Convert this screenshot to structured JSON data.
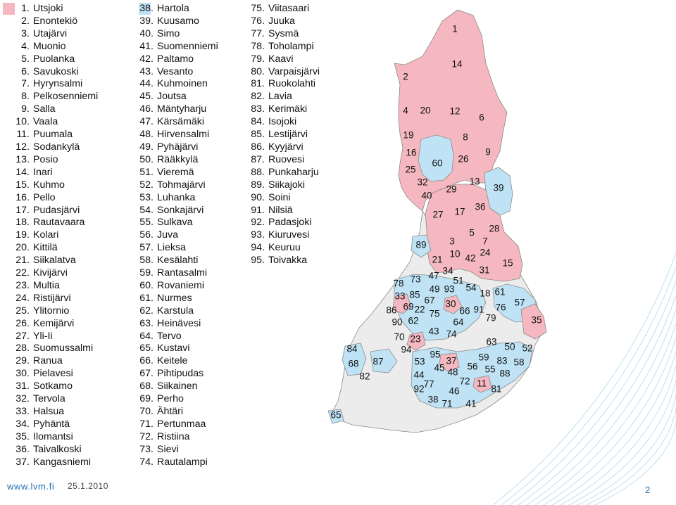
{
  "colors": {
    "group_1": "#f5b8c0",
    "group_2": "#bfe3f5",
    "neutral": "#ececec",
    "border": "#8a8a8a",
    "accent": "#1f6fb2"
  },
  "legend": {
    "group_1": [
      "1. Utsjoki",
      "2. Enontekiö",
      "3. Utajärvi",
      "4. Muonio",
      "5. Puolanka",
      "6. Savukoski",
      "7. Hyrynsalmi",
      "8. Pelkosenniemi",
      "9. Salla",
      "10. Vaala",
      "11. Puumala",
      "12. Sodankylä",
      "13. Posio",
      "14. Inari",
      "15. Kuhmo",
      "16. Pello",
      "17. Pudasjärvi",
      "18. Rautavaara",
      "19. Kolari",
      "20. Kittilä",
      "21. Siikalatva",
      "22. Kivijärvi",
      "23. Multia",
      "24. Ristijärvi",
      "25. Ylitornio",
      "26. Kemijärvi",
      "27. Yli-Ii",
      "28. Suomussalmi",
      "29. Ranua",
      "30. Pielavesi",
      "31. Sotkamo",
      "32. Tervola",
      "33. Halsua",
      "34. Pyhäntä",
      "35. Ilomantsi",
      "36. Taivalkoski",
      "37. Kangasniemi"
    ],
    "group_2": [
      "38. Hartola",
      "39. Kuusamo",
      "40. Simo",
      "41. Suomenniemi",
      "42. Paltamo",
      "43. Vesanto",
      "44. Kuhmoinen",
      "45. Joutsa",
      "46. Mäntyharju",
      "47. Kärsämäki",
      "48. Hirvensalmi",
      "49. Pyhäjärvi",
      "50. Rääkkylä",
      "51. Vieremä",
      "52. Tohmajärvi",
      "53. Luhanka",
      "54. Sonkajärvi",
      "55. Sulkava",
      "56. Juva",
      "57. Lieksa",
      "58. Kesälahti",
      "59. Rantasalmi",
      "60. Rovaniemi",
      "61. Nurmes",
      "62. Karstula",
      "63. Heinävesi",
      "64. Tervo",
      "65. Kustavi",
      "66. Keitele",
      "67. Pihtipudas",
      "68. Siikainen",
      "69. Perho",
      "70. Ähtäri",
      "71. Pertunmaa",
      "72. Ristiina",
      "73. Sievi",
      "74. Rautalampi"
    ],
    "group_3": [
      "75. Viitasaari",
      "76. Juuka",
      "77. Sysmä",
      "78. Toholampi",
      "79. Kaavi",
      "80. Varpaisjärvi",
      "81. Ruokolahti",
      "82. Lavia",
      "83. Kerimäki",
      "84. Isojoki",
      "85. Lestijärvi",
      "86. Kyyjärvi",
      "87. Ruovesi",
      "88. Punkaharju",
      "89. Siikajoki",
      "90. Soini",
      "91. Nilsiä",
      "92. Padasjoki",
      "93. Kiuruvesi",
      "94. Keuruu",
      "95. Toivakka"
    ]
  },
  "map_labels": [
    "1",
    "14",
    "2",
    "4",
    "20",
    "12",
    "6",
    "19",
    "8",
    "9",
    "16",
    "60",
    "26",
    "25",
    "32",
    "40",
    "29",
    "13",
    "39",
    "27",
    "17",
    "36",
    "28",
    "3",
    "5",
    "7",
    "89",
    "10",
    "42",
    "24",
    "21",
    "15",
    "47",
    "34",
    "31",
    "78",
    "73",
    "51",
    "54",
    "49",
    "93",
    "18",
    "61",
    "33",
    "85",
    "67",
    "30",
    "57",
    "69",
    "86",
    "22",
    "75",
    "66",
    "91",
    "76",
    "62",
    "64",
    "79",
    "90",
    "35",
    "43",
    "74",
    "70",
    "23",
    "63",
    "50",
    "52",
    "84",
    "94",
    "95",
    "59",
    "83",
    "58",
    "68",
    "37",
    "87",
    "53",
    "45",
    "56",
    "55",
    "88",
    "44",
    "48",
    "72",
    "82",
    "77",
    "11",
    "81",
    "92",
    "46",
    "38",
    "71",
    "41",
    "65"
  ],
  "footer": {
    "url": "www.lvm.fi",
    "date": "25.1.2010",
    "page": "2"
  }
}
